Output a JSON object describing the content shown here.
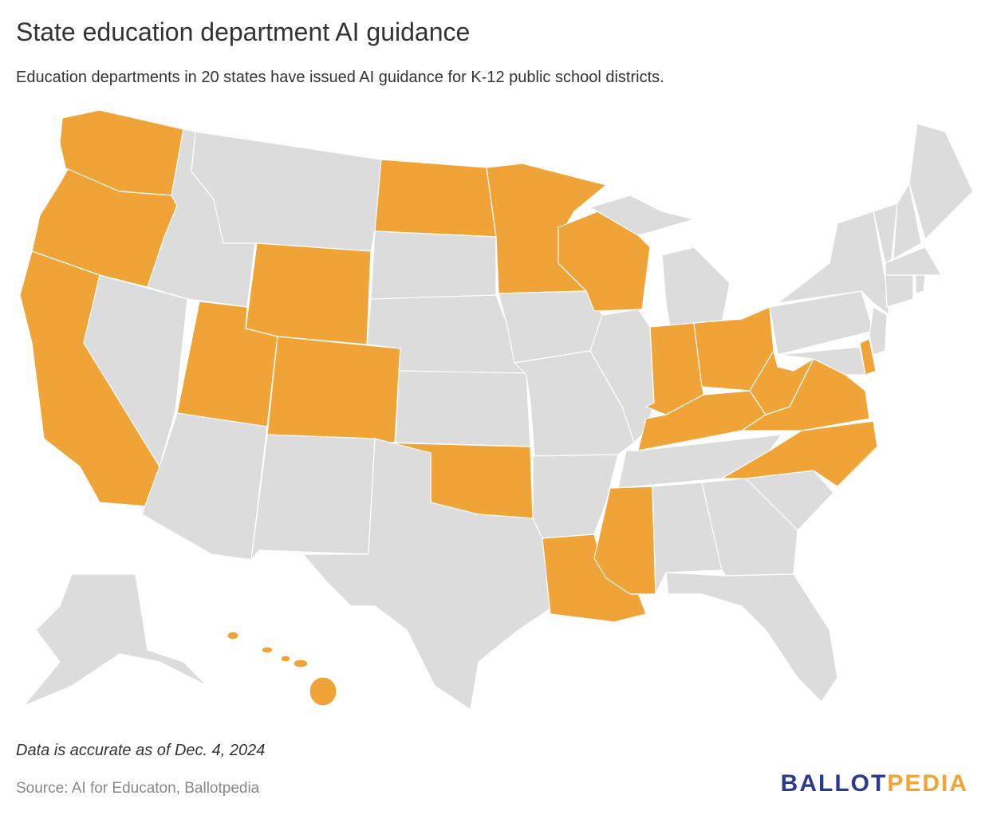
{
  "header": {
    "title": "State education department AI guidance",
    "subtitle": "Education departments in 20 states have issued AI guidance for K-12 public school districts."
  },
  "map": {
    "issued_color": "#f0a438",
    "other_color": "#dcdcdc"
  },
  "footer": {
    "note": "Data is accurate as of Dec. 4, 2024",
    "source": "Source: AI for Educaton, Ballotpedia",
    "logo": {
      "part1": "BALLOT",
      "part1_color": "#2b3a8f",
      "part2": "PEDIA",
      "part2_color": "#f0a438"
    }
  }
}
